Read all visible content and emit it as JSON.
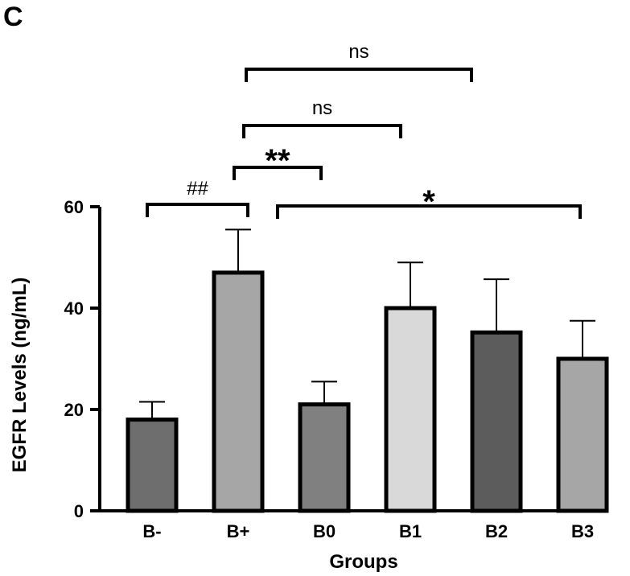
{
  "panel_label": "C",
  "chart_data": {
    "type": "bar",
    "title": "",
    "xlabel": "Groups",
    "ylabel": "EGFR Levels (ng/mL)",
    "ylim": [
      0,
      60
    ],
    "yticks": [
      0,
      20,
      40,
      60
    ],
    "grid": false,
    "categories": [
      "B-",
      "B+",
      "B0",
      "B1",
      "B2",
      "B3"
    ],
    "values": [
      18,
      47,
      21,
      40,
      35.2,
      30
    ],
    "errors": [
      3.5,
      8.5,
      4.5,
      9,
      10.5,
      7.5
    ],
    "colors": [
      "#6e6e6e",
      "#a6a6a6",
      "#808080",
      "#d9d9d9",
      "#5c5c5c",
      "#a6a6a6"
    ],
    "annotations": [
      {
        "from": "B-",
        "to": "B+",
        "label": "##",
        "style": "normal"
      },
      {
        "from": "B+",
        "to": "B0",
        "label": "**",
        "style": "bold"
      },
      {
        "from": "B+",
        "to": "B1",
        "label": "ns",
        "style": "normal"
      },
      {
        "from": "B+",
        "to": "B2",
        "label": "ns",
        "style": "normal"
      },
      {
        "from": "B+",
        "to": "B3",
        "label": "*",
        "style": "bold"
      }
    ]
  }
}
